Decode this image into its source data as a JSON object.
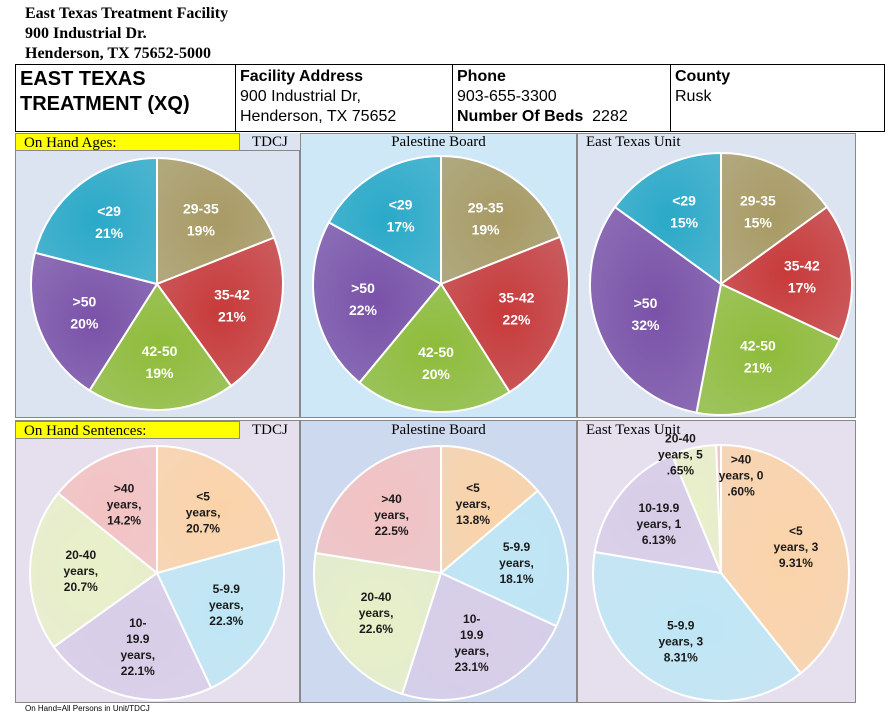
{
  "header": {
    "line1": "East Texas Treatment Facility",
    "line2": "900 Industrial Dr.",
    "line3": "Henderson, TX 75652-5000"
  },
  "info": {
    "name_line1": "EAST TEXAS",
    "name_line2": "TREATMENT (XQ)",
    "address_label": "Facility Address",
    "address_line1": "900 Industrial Dr,",
    "address_line2": "Henderson, TX 75652",
    "phone_label": "Phone",
    "phone_value": "903-655-3300",
    "beds_label": "Number Of Beds",
    "beds_value": "2282",
    "county_label": "County",
    "county_value": "Rusk"
  },
  "sections": {
    "ages_label": "On Hand Ages:",
    "sentences_label": "On Hand Sentences:"
  },
  "footer": "On Hand=All Persons in Unit/TDCJ",
  "colors": {
    "ages": {
      "29-35": "#a89a63",
      "35-42": "#c83a3a",
      "42-50": "#8fbc3a",
      ">50": "#7a52a8",
      "<29": "#2aa9c8"
    },
    "sentences": {
      "<5": "#fbd3a8",
      "5-9.9": "#bfe6f5",
      "10-19.9": "#d8cde8",
      "20-40": "#e8f0c8",
      ">40": "#f3c2c2"
    }
  },
  "chart_data": [
    {
      "type": "pie",
      "title": "TDCJ",
      "group": "ages",
      "labels": [
        "29-35",
        "35-42",
        "42-50",
        ">50",
        "<29"
      ],
      "values": [
        19,
        21,
        19,
        20,
        21
      ],
      "data_labels": [
        "29-35\n19%",
        "35-42\n21%",
        "42-50\n19%",
        ">50\n20%",
        "<29\n21%"
      ]
    },
    {
      "type": "pie",
      "title": "Palestine Board",
      "group": "ages",
      "labels": [
        "29-35",
        "35-42",
        "42-50",
        ">50",
        "<29"
      ],
      "values": [
        19,
        22,
        20,
        22,
        17
      ],
      "data_labels": [
        "29-35\n19%",
        "35-42\n22%",
        "42-50\n20%",
        ">50\n22%",
        "<29\n17%"
      ]
    },
    {
      "type": "pie",
      "title": "East Texas Unit",
      "group": "ages",
      "labels": [
        "29-35",
        "35-42",
        "42-50",
        ">50",
        "<29"
      ],
      "values": [
        15,
        17,
        21,
        32,
        15
      ],
      "data_labels": [
        "29-35\n15%",
        "35-42\n17%",
        "42-50\n21%",
        ">50\n32%",
        "<29\n15%"
      ]
    },
    {
      "type": "pie",
      "title": "TDCJ",
      "group": "sentences",
      "labels": [
        "<5",
        "5-9.9",
        "10-19.9",
        "20-40",
        ">40"
      ],
      "values": [
        20.7,
        22.3,
        22.1,
        20.7,
        14.2
      ],
      "data_labels": [
        "<5\nyears,\n20.7%",
        "5-9.9\nyears,\n22.3%",
        "10-\n19.9\nyears,\n22.1%",
        "20-40\nyears,\n20.7%",
        ">40\nyears,\n14.2%"
      ]
    },
    {
      "type": "pie",
      "title": "Palestine Board",
      "group": "sentences",
      "labels": [
        "<5",
        "5-9.9",
        "10-19.9",
        "20-40",
        ">40"
      ],
      "values": [
        13.8,
        18.1,
        23.1,
        22.6,
        22.5
      ],
      "data_labels": [
        "<5\nyears,\n13.8%",
        "5-9.9\nyears,\n18.1%",
        "10-\n19.9\nyears,\n23.1%",
        "20-40\nyears,\n22.6%",
        ">40\nyears,\n22.5%"
      ]
    },
    {
      "type": "pie",
      "title": "East Texas Unit",
      "group": "sentences",
      "labels": [
        "<5",
        "5-9.9",
        "10-19.9",
        "20-40",
        ">40"
      ],
      "values": [
        39.31,
        38.31,
        16.13,
        5.65,
        0.6
      ],
      "data_labels": [
        "<5\nyears, 3\n9.31%",
        "5-9.9\nyears, 3\n8.31%",
        "10-19.9\nyears, 1\n6.13%",
        "20-40\nyears, 5\n.65%",
        ">40\nyears, 0\n.60%"
      ]
    }
  ]
}
